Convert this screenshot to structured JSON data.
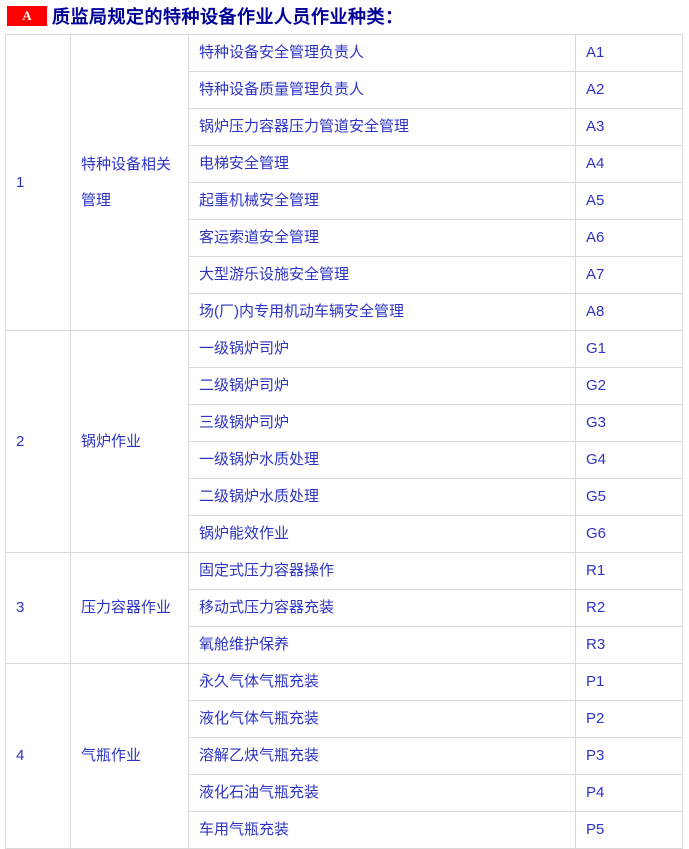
{
  "page": {
    "badge_label": "A",
    "title": "质监局规定的特种设备作业人员作业种类："
  },
  "colors": {
    "badge_bg": "#FE0000",
    "badge_text": "#FFFFFF",
    "title_text": "#000099",
    "cell_text": "#2D34C4",
    "table_border": "#D9D9D9"
  },
  "table": {
    "sections": [
      {
        "no": "1",
        "category": "特种设备相关管理",
        "items": [
          {
            "name": "特种设备安全管理负责人",
            "code": "A1"
          },
          {
            "name": "特种设备质量管理负责人",
            "code": "A2"
          },
          {
            "name": "锅炉压力容器压力管道安全管理",
            "code": "A3"
          },
          {
            "name": "电梯安全管理",
            "code": "A4"
          },
          {
            "name": "起重机械安全管理",
            "code": "A5"
          },
          {
            "name": "客运索道安全管理",
            "code": "A6"
          },
          {
            "name": "大型游乐设施安全管理",
            "code": "A7"
          },
          {
            "name": "场(厂)内专用机动车辆安全管理",
            "code": "A8"
          }
        ]
      },
      {
        "no": "2",
        "category": "锅炉作业",
        "items": [
          {
            "name": "一级锅炉司炉",
            "code": "G1"
          },
          {
            "name": "二级锅炉司炉",
            "code": "G2"
          },
          {
            "name": "三级锅炉司炉",
            "code": "G3"
          },
          {
            "name": "一级锅炉水质处理",
            "code": "G4"
          },
          {
            "name": "二级锅炉水质处理",
            "code": "G5"
          },
          {
            "name": "锅炉能效作业",
            "code": "G6"
          }
        ]
      },
      {
        "no": "3",
        "category": "压力容器作业",
        "items": [
          {
            "name": "固定式压力容器操作",
            "code": "R1"
          },
          {
            "name": "移动式压力容器充装",
            "code": "R2"
          },
          {
            "name": "氧舱维护保养",
            "code": "R3"
          }
        ]
      },
      {
        "no": "4",
        "category": "气瓶作业",
        "items": [
          {
            "name": "永久气体气瓶充装",
            "code": "P1"
          },
          {
            "name": "液化气体气瓶充装",
            "code": "P2"
          },
          {
            "name": "溶解乙炔气瓶充装",
            "code": "P3"
          },
          {
            "name": "液化石油气瓶充装",
            "code": "P4"
          },
          {
            "name": "车用气瓶充装",
            "code": "P5"
          }
        ]
      }
    ]
  }
}
